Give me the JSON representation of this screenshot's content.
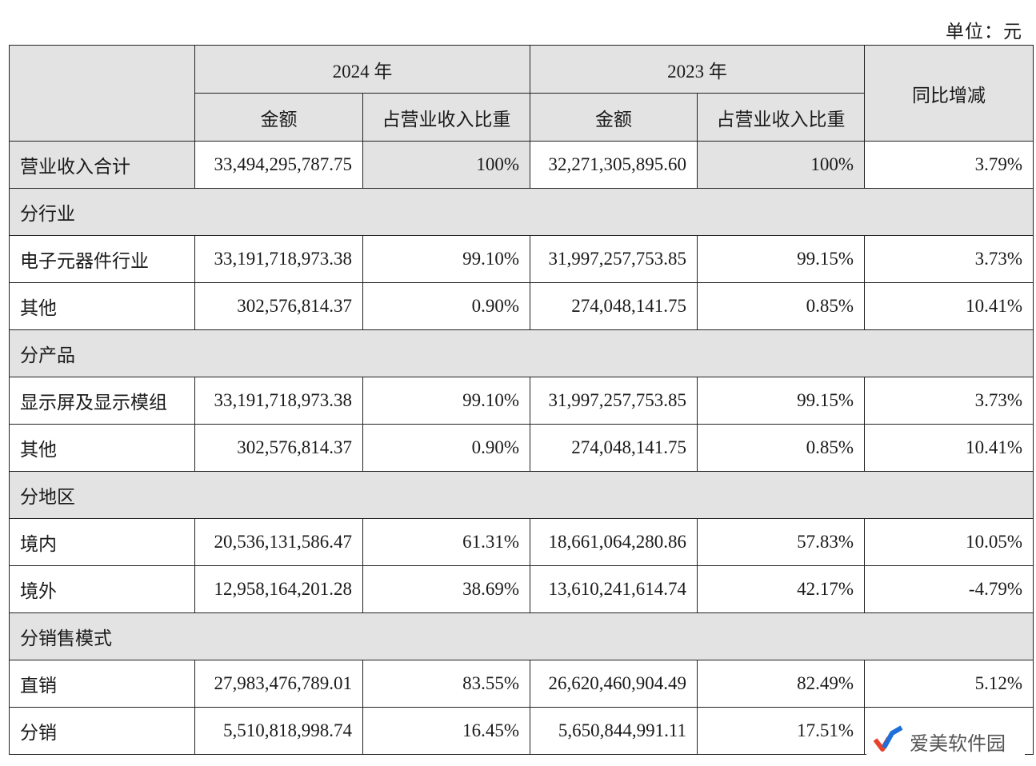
{
  "unit_label": "单位：元",
  "header": {
    "year_2024": "2024 年",
    "year_2023": "2023 年",
    "amount": "金额",
    "ratio": "占营业收入比重",
    "yoy": "同比增减"
  },
  "total": {
    "label": "营业收入合计",
    "amt2024": "33,494,295,787.75",
    "pct2024": "100%",
    "amt2023": "32,271,305,895.60",
    "pct2023": "100%",
    "yoy": "3.79%"
  },
  "section_industry": {
    "title": "分行业",
    "rows": [
      {
        "label": "电子元器件行业",
        "amt2024": "33,191,718,973.38",
        "pct2024": "99.10%",
        "amt2023": "31,997,257,753.85",
        "pct2023": "99.15%",
        "yoy": "3.73%"
      },
      {
        "label": "其他",
        "amt2024": "302,576,814.37",
        "pct2024": "0.90%",
        "amt2023": "274,048,141.75",
        "pct2023": "0.85%",
        "yoy": "10.41%"
      }
    ]
  },
  "section_product": {
    "title": "分产品",
    "rows": [
      {
        "label": "显示屏及显示模组",
        "amt2024": "33,191,718,973.38",
        "pct2024": "99.10%",
        "amt2023": "31,997,257,753.85",
        "pct2023": "99.15%",
        "yoy": "3.73%"
      },
      {
        "label": "其他",
        "amt2024": "302,576,814.37",
        "pct2024": "0.90%",
        "amt2023": "274,048,141.75",
        "pct2023": "0.85%",
        "yoy": "10.41%"
      }
    ]
  },
  "section_region": {
    "title": "分地区",
    "rows": [
      {
        "label": "境内",
        "amt2024": "20,536,131,586.47",
        "pct2024": "61.31%",
        "amt2023": "18,661,064,280.86",
        "pct2023": "57.83%",
        "yoy": "10.05%"
      },
      {
        "label": "境外",
        "amt2024": "12,958,164,201.28",
        "pct2024": "38.69%",
        "amt2023": "13,610,241,614.74",
        "pct2023": "42.17%",
        "yoy": "-4.79%"
      }
    ]
  },
  "section_sales": {
    "title": "分销售模式",
    "rows": [
      {
        "label": "直销",
        "amt2024": "27,983,476,789.01",
        "pct2024": "83.55%",
        "amt2023": "26,620,460,904.49",
        "pct2023": "82.49%",
        "yoy": "5.12%"
      },
      {
        "label": "分销",
        "amt2024": "5,510,818,998.74",
        "pct2024": "16.45%",
        "amt2023": "5,650,844,991.11",
        "pct2023": "17.51%",
        "yoy": ""
      }
    ]
  },
  "watermark": {
    "text": "爱美软件园",
    "icon": "checkmark-logo-icon",
    "colors": [
      "#e8412c",
      "#1e6fd9"
    ]
  }
}
